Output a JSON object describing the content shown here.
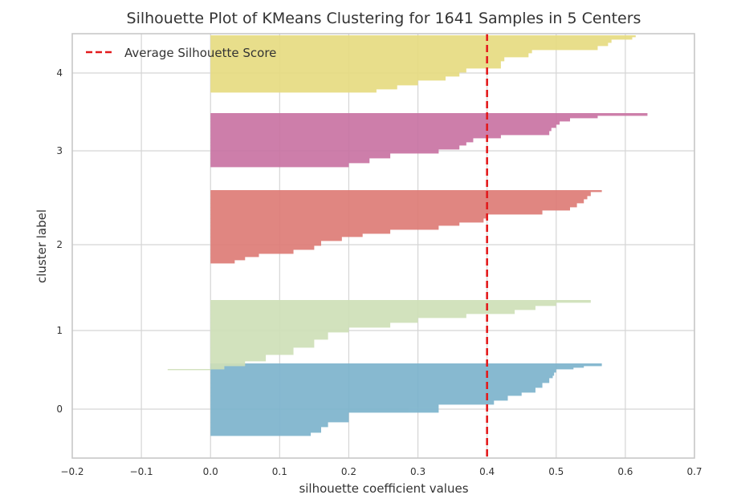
{
  "chart_data": {
    "type": "silhouette",
    "title": "Silhouette Plot of KMeans Clustering for 1641 Samples in 5 Centers",
    "xlabel": "silhouette coefficient values",
    "ylabel": "cluster label",
    "xlim": [
      -0.2,
      0.7
    ],
    "xticks": [
      "−0.2",
      "−0.1",
      "0.0",
      "0.1",
      "0.2",
      "0.3",
      "0.4",
      "0.5",
      "0.6",
      "0.7"
    ],
    "yticks": [
      "0",
      "1",
      "2",
      "3",
      "4"
    ],
    "grid": true,
    "legend": {
      "label": "Average Silhouette Score",
      "position": "top-left"
    },
    "average_score": 0.4,
    "clusters": [
      {
        "label": "0",
        "color": "#7db4cd",
        "profile": [
          [
            0.566,
            3
          ],
          [
            0.54,
            2
          ],
          [
            0.525,
            2
          ],
          [
            0.5,
            4
          ],
          [
            0.497,
            4
          ],
          [
            0.495,
            3
          ],
          [
            0.49,
            6
          ],
          [
            0.48,
            6
          ],
          [
            0.47,
            6
          ],
          [
            0.45,
            4
          ],
          [
            0.43,
            6
          ],
          [
            0.41,
            5
          ],
          [
            0.33,
            10
          ],
          [
            0.2,
            12
          ],
          [
            0.17,
            6
          ],
          [
            0.16,
            7
          ],
          [
            0.145,
            4
          ]
        ]
      },
      {
        "label": "1",
        "color": "#cfe0b8",
        "profile": [
          [
            0.55,
            3
          ],
          [
            0.5,
            4
          ],
          [
            0.47,
            5
          ],
          [
            0.44,
            5
          ],
          [
            0.37,
            5
          ],
          [
            0.3,
            6
          ],
          [
            0.26,
            6
          ],
          [
            0.2,
            6
          ],
          [
            0.17,
            9
          ],
          [
            0.15,
            10
          ],
          [
            0.12,
            9
          ],
          [
            0.08,
            8
          ],
          [
            0.05,
            6
          ],
          [
            0.02,
            4
          ],
          [
            -0.062,
            1
          ]
        ]
      },
      {
        "label": "2",
        "color": "#de7c77",
        "profile": [
          [
            0.566,
            2
          ],
          [
            0.55,
            5
          ],
          [
            0.545,
            4
          ],
          [
            0.54,
            5
          ],
          [
            0.53,
            5
          ],
          [
            0.52,
            4
          ],
          [
            0.48,
            5
          ],
          [
            0.4,
            5
          ],
          [
            0.395,
            5
          ],
          [
            0.36,
            4
          ],
          [
            0.33,
            5
          ],
          [
            0.26,
            5
          ],
          [
            0.22,
            4
          ],
          [
            0.19,
            5
          ],
          [
            0.16,
            6
          ],
          [
            0.15,
            5
          ],
          [
            0.12,
            5
          ],
          [
            0.07,
            4
          ],
          [
            0.05,
            4
          ],
          [
            0.035,
            4
          ]
        ]
      },
      {
        "label": "3",
        "color": "#c974a3",
        "profile": [
          [
            0.632,
            3
          ],
          [
            0.56,
            3
          ],
          [
            0.52,
            4
          ],
          [
            0.505,
            4
          ],
          [
            0.5,
            4
          ],
          [
            0.493,
            4
          ],
          [
            0.49,
            5
          ],
          [
            0.42,
            4
          ],
          [
            0.38,
            5
          ],
          [
            0.37,
            4
          ],
          [
            0.36,
            5
          ],
          [
            0.33,
            5
          ],
          [
            0.26,
            6
          ],
          [
            0.23,
            6
          ],
          [
            0.2,
            5
          ]
        ]
      },
      {
        "label": "4",
        "color": "#e7dc82",
        "profile": [
          [
            0.615,
            2
          ],
          [
            0.61,
            3
          ],
          [
            0.58,
            4
          ],
          [
            0.575,
            4
          ],
          [
            0.56,
            5
          ],
          [
            0.465,
            4
          ],
          [
            0.46,
            5
          ],
          [
            0.425,
            5
          ],
          [
            0.42,
            5
          ],
          [
            0.42,
            4
          ],
          [
            0.37,
            5
          ],
          [
            0.36,
            5
          ],
          [
            0.34,
            5
          ],
          [
            0.3,
            6
          ],
          [
            0.27,
            5
          ],
          [
            0.24,
            4
          ]
        ]
      }
    ]
  },
  "colors": {
    "average_line": "#e31a1c",
    "grid": "#d5d5d5",
    "frame": "#c8c8c8"
  }
}
